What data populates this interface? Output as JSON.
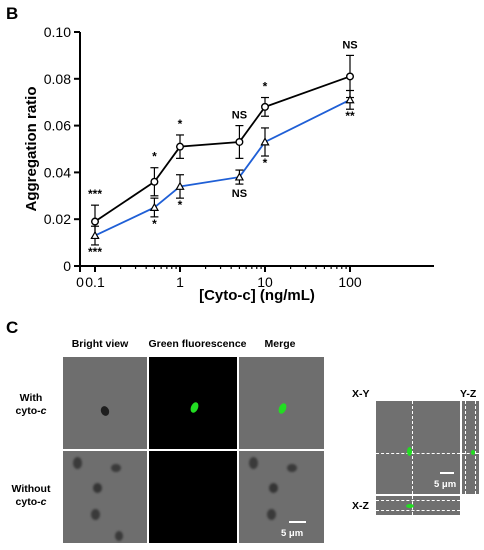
{
  "panel_b_label": "B",
  "panel_c_label": "C",
  "chart_data": {
    "type": "line",
    "xlabel": "[Cyto-c] (ng/mL)",
    "ylabel": "Aggregation ratio",
    "xscale": "log",
    "x_tick_labels": [
      "0",
      "0.1",
      "1",
      "10",
      "100"
    ],
    "y_tick_labels": [
      "0",
      "0.02",
      "0.04",
      "0.06",
      "0.08",
      "0.10"
    ],
    "ylim": [
      0,
      0.1
    ],
    "x": [
      0.1,
      0.5,
      1,
      5,
      10,
      100
    ],
    "series": [
      {
        "marker": "circle",
        "color": "#000000",
        "values": [
          0.019,
          0.036,
          0.051,
          0.053,
          0.068,
          0.081
        ],
        "errors": [
          0.007,
          0.006,
          0.005,
          0.007,
          0.004,
          0.009
        ],
        "annotations": [
          "***",
          "*",
          "*",
          "NS",
          "*",
          "NS"
        ]
      },
      {
        "marker": "triangle",
        "color": "#1f5fd6",
        "values": [
          0.013,
          0.025,
          0.034,
          0.038,
          0.053,
          0.071
        ],
        "errors": [
          0.004,
          0.004,
          0.005,
          0.003,
          0.006,
          0.004
        ],
        "annotations": [
          "***",
          "*",
          "*",
          "NS",
          "*",
          "**"
        ]
      }
    ]
  },
  "micrographs": {
    "col_headers": [
      "Bright view",
      "Green fluorescence",
      "Merge"
    ],
    "row_with_line1": "With",
    "row_with_line2": "cyto-",
    "row_with_italic": "c",
    "row_without_line1": "Without",
    "row_without_line2": "cyto-",
    "row_without_italic": "c",
    "scale_label": "5 μm",
    "fluor_color": "#22dd22"
  },
  "orthogonal": {
    "xy_label": "X-Y",
    "yz_label": "Y-Z",
    "xz_label": "X-Z",
    "scale_label": "5 μm"
  }
}
